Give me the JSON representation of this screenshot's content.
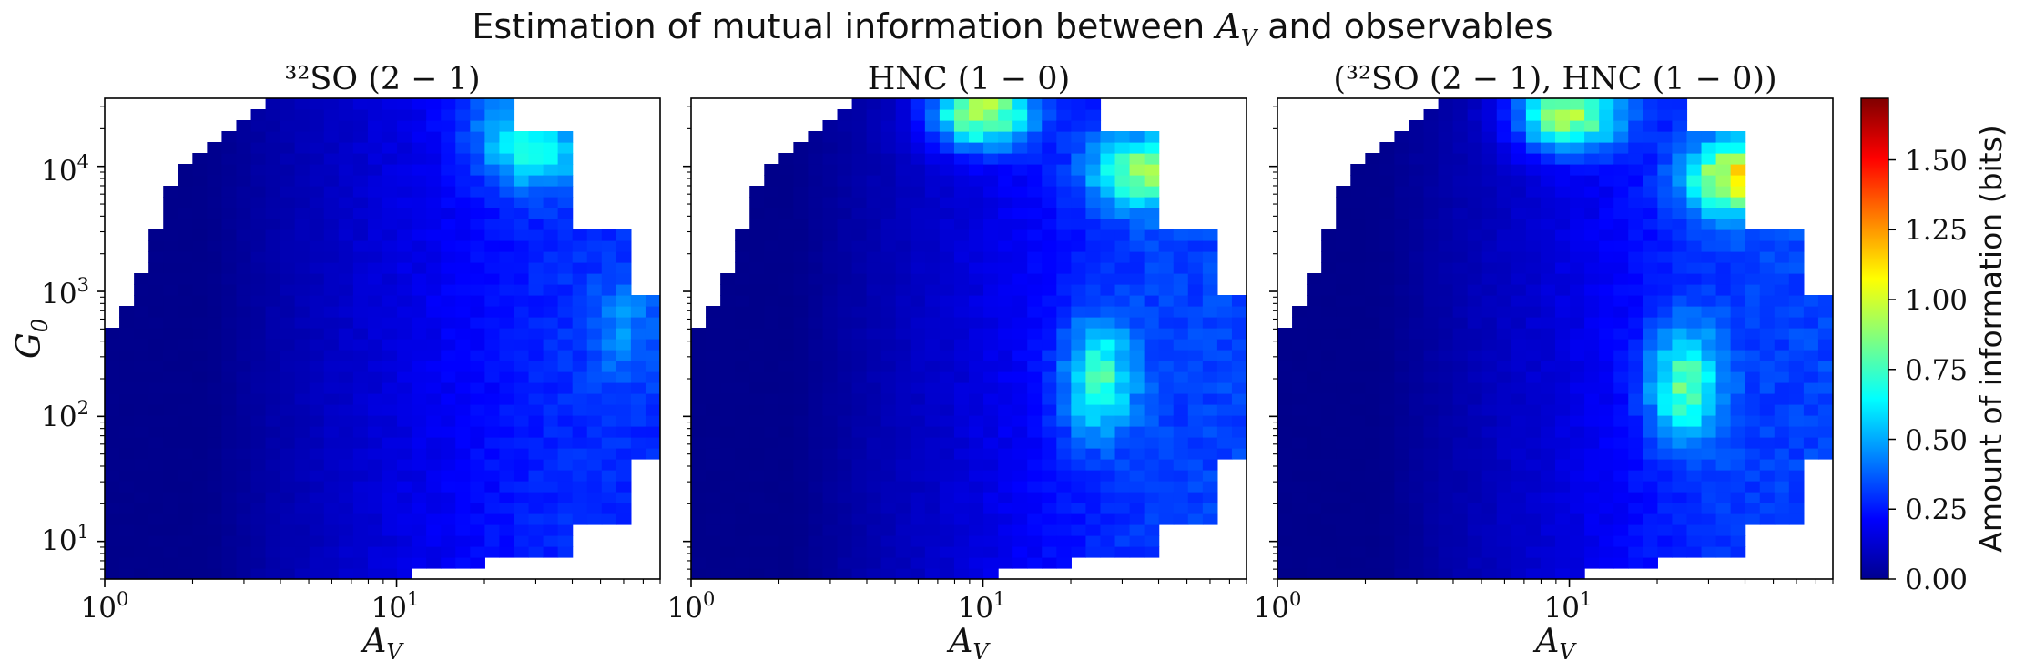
{
  "figure": {
    "suptitle_prefix": "Estimation of mutual information between",
    "suptitle_var": "A",
    "suptitle_var_sub": "V",
    "suptitle_suffix": "and observables"
  },
  "colorbar": {
    "label": "Amount of information (bits)",
    "ticks": [
      "0.00",
      "0.25",
      "0.50",
      "0.75",
      "1.00",
      "1.25",
      "1.50"
    ],
    "min": 0,
    "max": 1.72,
    "colormap": "jet"
  },
  "axes": {
    "xlabel": "A",
    "xlabel_sub": "V",
    "ylabel": "G",
    "ylabel_sub": "0",
    "x_tick_labels": [
      "10",
      "10",
      "10"
    ],
    "x_tick_exponents": [
      "0",
      "1",
      "0"
    ],
    "y_tick_labels": [
      "10",
      "10",
      "10",
      "10"
    ],
    "y_tick_exponents": [
      "1",
      "2",
      "3",
      "4"
    ]
  },
  "chart_data": [
    {
      "type": "heatmap",
      "title": "³²SO (2 − 1)",
      "xlabel": "A_V",
      "ylabel": "G_0",
      "x_scale": "log",
      "y_scale": "log",
      "xlim": [
        1,
        80
      ],
      "ylim": [
        5,
        35000
      ],
      "colorbar_range": [
        0,
        1.72
      ],
      "hotspots": [
        {
          "A_V": 30,
          "G_0": 12000,
          "bits": 0.62
        },
        {
          "A_V": 25,
          "G_0": 25000,
          "bits": 0.45
        },
        {
          "A_V": 60,
          "G_0": 500,
          "bits": 0.45
        }
      ]
    },
    {
      "type": "heatmap",
      "title": "HNC (1 − 0)",
      "xlabel": "A_V",
      "ylabel": "",
      "x_scale": "log",
      "y_scale": "log",
      "xlim": [
        1,
        80
      ],
      "ylim": [
        5,
        35000
      ],
      "colorbar_range": [
        0,
        1.72
      ],
      "hotspots": [
        {
          "A_V": 10,
          "G_0": 28000,
          "bits": 0.95
        },
        {
          "A_V": 35,
          "G_0": 9000,
          "bits": 0.88
        },
        {
          "A_V": 25,
          "G_0": 200,
          "bits": 0.75
        }
      ]
    },
    {
      "type": "heatmap",
      "title": "(³²SO (2 − 1), HNC (1 − 0))",
      "xlabel": "A_V",
      "ylabel": "",
      "x_scale": "log",
      "y_scale": "log",
      "xlim": [
        1,
        80
      ],
      "ylim": [
        5,
        35000
      ],
      "colorbar_range": [
        0,
        1.72
      ],
      "hotspots": [
        {
          "A_V": 10,
          "G_0": 26000,
          "bits": 0.95
        },
        {
          "A_V": 38,
          "G_0": 8000,
          "bits": 1.1
        },
        {
          "A_V": 25,
          "G_0": 180,
          "bits": 0.8
        }
      ]
    }
  ]
}
